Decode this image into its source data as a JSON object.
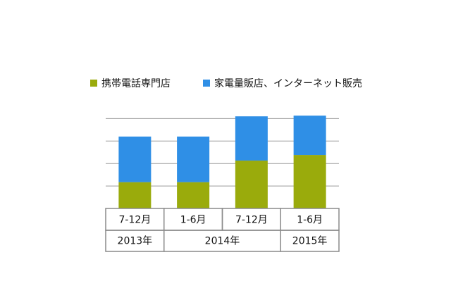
{
  "chart_data": {
    "type": "stacked_bar",
    "categories": [
      "7-12月",
      "1-6月",
      "7-12月",
      "1-6月"
    ],
    "year_groups": [
      {
        "label": "2013年",
        "span": 1
      },
      {
        "label": "2014年",
        "span": 2
      },
      {
        "label": "2015年",
        "span": 1
      }
    ],
    "series": [
      {
        "name": "携帯電話専門店",
        "color": "#9aab0c",
        "values": [
          1.17,
          1.17,
          2.13,
          2.38
        ]
      },
      {
        "name": "家電量販店、インターネット販売",
        "color": "#2f8fe6",
        "values": [
          2.03,
          2.03,
          1.97,
          1.75
        ]
      }
    ],
    "ylim": [
      0,
      4.2
    ],
    "yticks": [
      0,
      1,
      2,
      3,
      4
    ],
    "tick_labels": false,
    "grid": true,
    "legend": "top"
  }
}
